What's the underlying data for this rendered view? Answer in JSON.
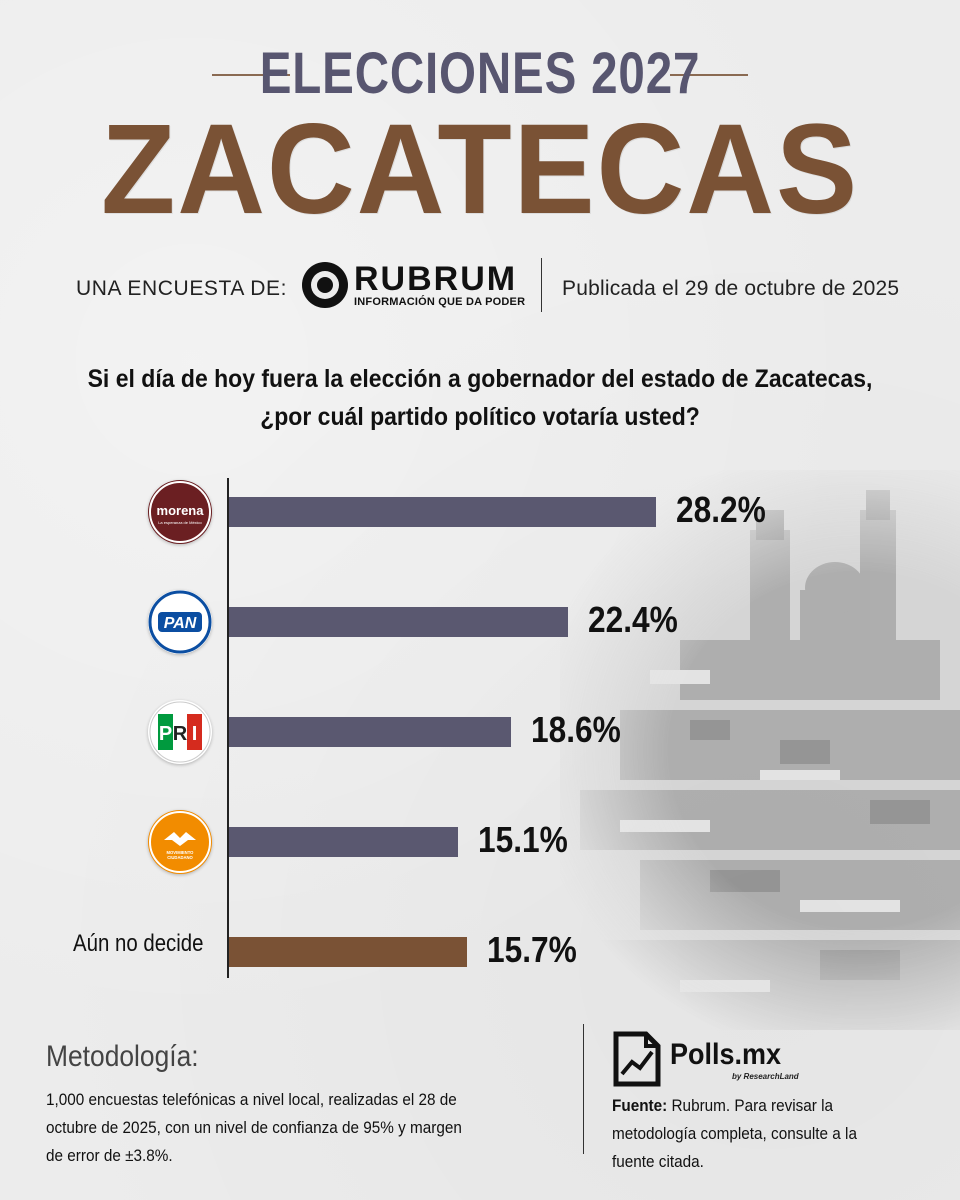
{
  "header": {
    "supertitle": "ELECCIONES 2027",
    "title": "ZACATECAS",
    "survey_by_label": "UNA ENCUESTA DE:",
    "pollster": {
      "name": "RUBRUM",
      "tagline": "INFORMACIÓN QUE DA PODER"
    },
    "published": "Publicada el 29 de octubre de 2025"
  },
  "question": {
    "line1": "Si el día de hoy fuera la elección a gobernador del estado de Zacatecas,",
    "line2": "¿por cuál partido político votaría usted?"
  },
  "chart_data": {
    "type": "bar",
    "orientation": "horizontal",
    "categories": [
      "morena",
      "PAN",
      "PRI",
      "Movimiento Ciudadano",
      "Aún no decide"
    ],
    "values": [
      28.2,
      22.4,
      18.6,
      15.1,
      15.7
    ],
    "value_labels": [
      "28.2%",
      "22.4%",
      "18.6%",
      "15.1%",
      "15.7%"
    ],
    "bar_colors": [
      "#5a5870",
      "#5a5870",
      "#5a5870",
      "#5a5870",
      "#7a5235"
    ],
    "title": "",
    "xlabel": "",
    "ylabel": "",
    "grid": false
  },
  "parties": [
    {
      "name": "morena",
      "logo_text": "morena",
      "logo_subtext": "La esperanza de México",
      "icon": "morena-logo-icon",
      "color": "#6b1f22"
    },
    {
      "name": "PAN",
      "logo_text": "PAN",
      "icon": "pan-logo-icon",
      "color": "#0b4ea2"
    },
    {
      "name": "PRI",
      "logo_text": "PRI",
      "icon": "pri-logo-icon",
      "color": "#009a3e"
    },
    {
      "name": "Movimiento Ciudadano",
      "logo_text": "MOVIMIENTO CIUDADANO",
      "icon": "mc-logo-icon",
      "color": "#f28c00"
    },
    {
      "name": "Aún no decide",
      "label": "Aún no decide"
    }
  ],
  "methodology": {
    "title": "Metodología:",
    "text": "1,000 encuestas telefónicas a nivel local, realizadas el 28 de octubre de 2025, con un nivel de confianza de 95% y margen de error de ±3.8%."
  },
  "footer": {
    "brand": "Polls.mx",
    "brand_sub": "by ResearchLand",
    "source_label": "Fuente:",
    "source_text": "Rubrum. Para revisar la metodología completa, consulte a la fuente citada."
  }
}
